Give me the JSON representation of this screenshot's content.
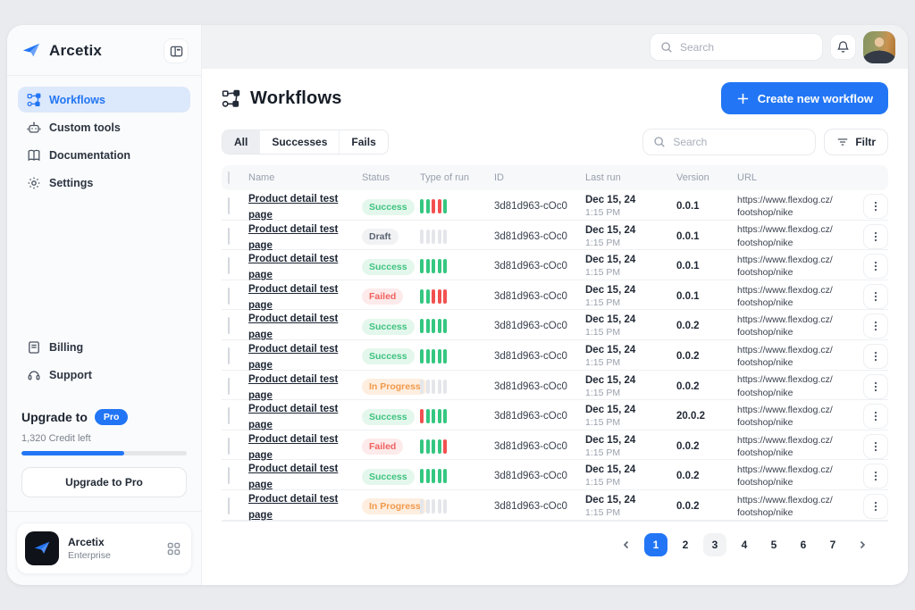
{
  "brand": {
    "name": "Arcetix",
    "plan_name": "Arcetix",
    "plan_tier": "Enterprise"
  },
  "colors": {
    "accent": "#2276f5",
    "bar": {
      "green": "#34c780",
      "red": "#f25050",
      "gray": "#e4e6ea"
    },
    "status": {
      "success": {
        "bg": "#e4f7ec",
        "fg": "#3fc380"
      },
      "draft": {
        "bg": "#f1f2f4",
        "fg": "#5a6472"
      },
      "failed": {
        "bg": "#fdeaea",
        "fg": "#f0615f"
      },
      "inprogress": {
        "bg": "#fdeee0",
        "fg": "#f2994a"
      }
    }
  },
  "sidebar": {
    "nav": [
      {
        "label": "Workflows",
        "icon": "workflow-icon",
        "active": true
      },
      {
        "label": "Custom tools",
        "icon": "robot-icon",
        "active": false
      },
      {
        "label": "Documentation",
        "icon": "book-icon",
        "active": false
      },
      {
        "label": "Settings",
        "icon": "gear-icon",
        "active": false
      }
    ],
    "footer_nav": [
      {
        "label": "Billing",
        "icon": "billing-icon"
      },
      {
        "label": "Support",
        "icon": "support-icon"
      }
    ],
    "upgrade": {
      "title": "Upgrade to",
      "badge": "Pro",
      "credits": "1,320 Credit left",
      "progress_pct": 62,
      "button_label": "Upgrade to Pro"
    }
  },
  "topbar": {
    "search_placeholder": "Search"
  },
  "main": {
    "title": "Workflows",
    "create_button_label": "Create new workflow",
    "tabs": [
      "All",
      "Successes",
      "Fails"
    ],
    "active_tab": "All",
    "table_search_placeholder": "Search",
    "filter_label": "Filtr",
    "table": {
      "columns": [
        "Name",
        "Status",
        "Type of run",
        "ID",
        "Last run",
        "Version",
        "URL"
      ],
      "rows": [
        {
          "name": "Product detail test page",
          "status": "Success",
          "bars": [
            "green",
            "green",
            "red",
            "red",
            "green"
          ],
          "id": "3d81d963-cOc0",
          "last_run_date": "Dec 15, 24",
          "last_run_time": "1:15 PM",
          "version": "0.0.1",
          "url_line1": "https://www.flexdog.cz/",
          "url_line2": "footshop/nike"
        },
        {
          "name": "Product detail test page",
          "status": "Draft",
          "bars": [
            "gray",
            "gray",
            "gray",
            "gray",
            "gray"
          ],
          "id": "3d81d963-cOc0",
          "last_run_date": "Dec 15, 24",
          "last_run_time": "1:15 PM",
          "version": "0.0.1",
          "url_line1": "https://www.flexdog.cz/",
          "url_line2": "footshop/nike"
        },
        {
          "name": "Product detail test page",
          "status": "Success",
          "bars": [
            "green",
            "green",
            "green",
            "green",
            "green"
          ],
          "id": "3d81d963-cOc0",
          "last_run_date": "Dec 15, 24",
          "last_run_time": "1:15 PM",
          "version": "0.0.1",
          "url_line1": "https://www.flexdog.cz/",
          "url_line2": "footshop/nike"
        },
        {
          "name": "Product detail test page",
          "status": "Failed",
          "bars": [
            "green",
            "green",
            "red",
            "red",
            "red"
          ],
          "id": "3d81d963-cOc0",
          "last_run_date": "Dec 15, 24",
          "last_run_time": "1:15 PM",
          "version": "0.0.1",
          "url_line1": "https://www.flexdog.cz/",
          "url_line2": "footshop/nike"
        },
        {
          "name": "Product detail test page",
          "status": "Success",
          "bars": [
            "green",
            "green",
            "green",
            "green",
            "green"
          ],
          "id": "3d81d963-cOc0",
          "last_run_date": "Dec 15, 24",
          "last_run_time": "1:15 PM",
          "version": "0.0.2",
          "url_line1": "https://www.flexdog.cz/",
          "url_line2": "footshop/nike"
        },
        {
          "name": "Product detail test page",
          "status": "Success",
          "bars": [
            "green",
            "green",
            "green",
            "green",
            "green"
          ],
          "id": "3d81d963-cOc0",
          "last_run_date": "Dec 15, 24",
          "last_run_time": "1:15 PM",
          "version": "0.0.2",
          "url_line1": "https://www.flexdog.cz/",
          "url_line2": "footshop/nike"
        },
        {
          "name": "Product detail test page",
          "status": "In Progress",
          "bars": [
            "gray",
            "gray",
            "gray",
            "gray",
            "gray"
          ],
          "id": "3d81d963-cOc0",
          "last_run_date": "Dec 15, 24",
          "last_run_time": "1:15 PM",
          "version": "0.0.2",
          "url_line1": "https://www.flexdog.cz/",
          "url_line2": "footshop/nike"
        },
        {
          "name": "Product detail test page",
          "status": "Success",
          "bars": [
            "red",
            "green",
            "green",
            "green",
            "green"
          ],
          "id": "3d81d963-cOc0",
          "last_run_date": "Dec 15, 24",
          "last_run_time": "1:15 PM",
          "version": "20.0.2",
          "url_line1": "https://www.flexdog.cz/",
          "url_line2": "footshop/nike"
        },
        {
          "name": "Product detail test page",
          "status": "Failed",
          "bars": [
            "green",
            "green",
            "green",
            "green",
            "red"
          ],
          "id": "3d81d963-cOc0",
          "last_run_date": "Dec 15, 24",
          "last_run_time": "1:15 PM",
          "version": "0.0.2",
          "url_line1": "https://www.flexdog.cz/",
          "url_line2": "footshop/nike"
        },
        {
          "name": "Product detail test page",
          "status": "Success",
          "bars": [
            "green",
            "green",
            "green",
            "green",
            "green"
          ],
          "id": "3d81d963-cOc0",
          "last_run_date": "Dec 15, 24",
          "last_run_time": "1:15 PM",
          "version": "0.0.2",
          "url_line1": "https://www.flexdog.cz/",
          "url_line2": "footshop/nike"
        },
        {
          "name": "Product detail test page",
          "status": "In Progress",
          "bars": [
            "gray",
            "gray",
            "gray",
            "gray",
            "gray"
          ],
          "id": "3d81d963-cOc0",
          "last_run_date": "Dec 15, 24",
          "last_run_time": "1:15 PM",
          "version": "0.0.2",
          "url_line1": "https://www.flexdog.cz/",
          "url_line2": "footshop/nike"
        }
      ]
    },
    "pagination": {
      "pages": [
        "1",
        "2",
        "3",
        "4",
        "5",
        "6",
        "7"
      ],
      "active_page": "1",
      "highlighted_page": "3"
    }
  }
}
